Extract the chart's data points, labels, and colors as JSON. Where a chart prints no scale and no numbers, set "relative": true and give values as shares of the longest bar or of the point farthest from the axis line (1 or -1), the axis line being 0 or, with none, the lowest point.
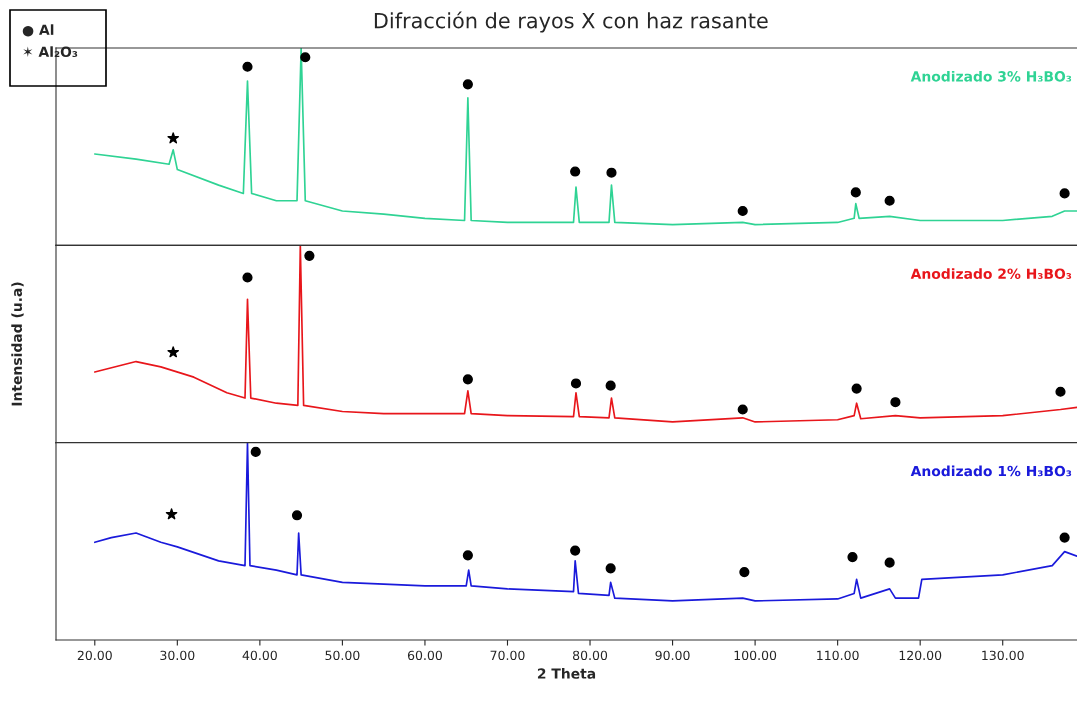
{
  "chart_data": [
    {
      "type": "line",
      "title": "Difracción de rayos X con haz rasante",
      "relative": true,
      "xlim": [
        15.3,
        139
      ],
      "tick_labels": false,
      "annotations": [
        "● Al",
        "✶ Al₂O₃"
      ],
      "x": [
        20,
        25,
        29,
        29.5,
        30,
        35,
        38,
        38.5,
        39,
        42,
        44.5,
        45,
        45.5,
        50,
        55,
        60,
        64.8,
        65.2,
        65.6,
        70,
        78,
        78.3,
        78.7,
        82.3,
        82.6,
        83,
        90,
        98.5,
        100,
        110,
        112,
        112.2,
        112.6,
        116.3,
        120,
        130,
        136,
        137.5,
        139
      ],
      "series": [
        {
          "name": "Anodizado 3% H₃BO₃",
          "color": "#2fd394",
          "values": [
            0.463,
            0.437,
            0.411,
            0.484,
            0.384,
            0.305,
            0.263,
            0.832,
            0.263,
            0.226,
            0.226,
            1.0,
            0.226,
            0.174,
            0.158,
            0.137,
            0.126,
            0.747,
            0.126,
            0.116,
            0.116,
            0.295,
            0.116,
            0.116,
            0.305,
            0.116,
            0.105,
            0.116,
            0.105,
            0.116,
            0.137,
            0.211,
            0.137,
            0.147,
            0.126,
            0.126,
            0.147,
            0.174,
            0.174
          ]
        },
        {
          "type": "scatter",
          "marker": "star",
          "color": "#000000",
          "x": [
            29.5
          ],
          "values": [
            0.542
          ]
        },
        {
          "type": "scatter",
          "marker": "circle",
          "color": "#000000",
          "x": [
            38.5,
            45.5,
            65.2,
            78.2,
            82.6,
            98.5,
            112.2,
            116.3,
            137.5
          ],
          "values": [
            0.905,
            0.953,
            0.816,
            0.374,
            0.368,
            0.174,
            0.268,
            0.226,
            0.263
          ]
        }
      ]
    },
    {
      "type": "line",
      "ylabel": "Intensidad (u.a)",
      "relative": true,
      "xlim": [
        15.3,
        139
      ],
      "tick_labels": false,
      "x": [
        20,
        25,
        28,
        32,
        36,
        38.2,
        38.5,
        38.9,
        42,
        44.6,
        44.9,
        45.3,
        50,
        55,
        64.8,
        65.2,
        65.6,
        70,
        78,
        78.3,
        78.7,
        82.3,
        82.6,
        83,
        90,
        98.5,
        100,
        110,
        112,
        112.3,
        112.8,
        117,
        120,
        130,
        137,
        139
      ],
      "series": [
        {
          "name": "Anodizado 2% H₃BO₃",
          "color": "#e8161b",
          "values": [
            0.358,
            0.411,
            0.384,
            0.332,
            0.253,
            0.226,
            0.726,
            0.226,
            0.2,
            0.189,
            1.0,
            0.189,
            0.158,
            0.147,
            0.147,
            0.263,
            0.147,
            0.137,
            0.132,
            0.253,
            0.132,
            0.126,
            0.226,
            0.126,
            0.105,
            0.126,
            0.105,
            0.116,
            0.137,
            0.2,
            0.121,
            0.137,
            0.126,
            0.137,
            0.168,
            0.179
          ]
        },
        {
          "type": "scatter",
          "marker": "star",
          "color": "#000000",
          "x": [
            29.5
          ],
          "values": [
            0.458
          ]
        },
        {
          "type": "scatter",
          "marker": "circle",
          "color": "#000000",
          "x": [
            38.5,
            46,
            65.2,
            78.3,
            82.5,
            98.5,
            112.3,
            117,
            137
          ],
          "values": [
            0.837,
            0.947,
            0.321,
            0.3,
            0.289,
            0.168,
            0.274,
            0.205,
            0.258
          ]
        }
      ]
    },
    {
      "type": "line",
      "xlabel": "2 Theta",
      "relative": true,
      "xlim": [
        15.3,
        139
      ],
      "tick_labels": "x",
      "xticks": [
        {
          "value": 20,
          "label": "20.00"
        },
        {
          "value": 30,
          "label": "30.00"
        },
        {
          "value": 40,
          "label": "40.00"
        },
        {
          "value": 50,
          "label": "50.00"
        },
        {
          "value": 60,
          "label": "60.00"
        },
        {
          "value": 70,
          "label": "70.00"
        },
        {
          "value": 80,
          "label": "80.00"
        },
        {
          "value": 90,
          "label": "90.00"
        },
        {
          "value": 100,
          "label": "100.00"
        },
        {
          "value": 110,
          "label": "110.00"
        },
        {
          "value": 120,
          "label": "120.00"
        },
        {
          "value": 130,
          "label": "130.00"
        }
      ],
      "x": [
        20,
        22,
        25,
        28,
        30,
        35,
        38.2,
        38.5,
        38.8,
        42,
        44.5,
        44.7,
        45,
        50,
        55,
        60,
        65,
        65.3,
        65.6,
        70,
        78,
        78.2,
        78.6,
        82.3,
        82.5,
        83,
        90,
        98.5,
        100,
        110,
        112,
        112.3,
        112.8,
        116.3,
        117,
        119.8,
        120.2,
        130,
        136,
        137.5,
        139
      ],
      "series": [
        {
          "name": "Anodizado 1% H₃BO₃",
          "color": "#1a1adb",
          "values": [
            0.495,
            0.519,
            0.542,
            0.495,
            0.472,
            0.401,
            0.377,
            1.0,
            0.377,
            0.354,
            0.33,
            0.542,
            0.33,
            0.292,
            0.283,
            0.274,
            0.274,
            0.354,
            0.274,
            0.259,
            0.245,
            0.401,
            0.236,
            0.226,
            0.292,
            0.212,
            0.198,
            0.212,
            0.198,
            0.208,
            0.236,
            0.307,
            0.212,
            0.259,
            0.212,
            0.212,
            0.307,
            0.33,
            0.377,
            0.448,
            0.425
          ]
        },
        {
          "type": "scatter",
          "marker": "star",
          "color": "#000000",
          "x": [
            29.3
          ],
          "values": [
            0.637
          ]
        },
        {
          "type": "scatter",
          "marker": "circle",
          "color": "#000000",
          "x": [
            39.5,
            44.5,
            65.2,
            78.2,
            82.5,
            98.7,
            111.8,
            116.3,
            137.5
          ],
          "values": [
            0.953,
            0.632,
            0.429,
            0.453,
            0.363,
            0.344,
            0.42,
            0.392,
            0.519
          ]
        }
      ]
    }
  ]
}
